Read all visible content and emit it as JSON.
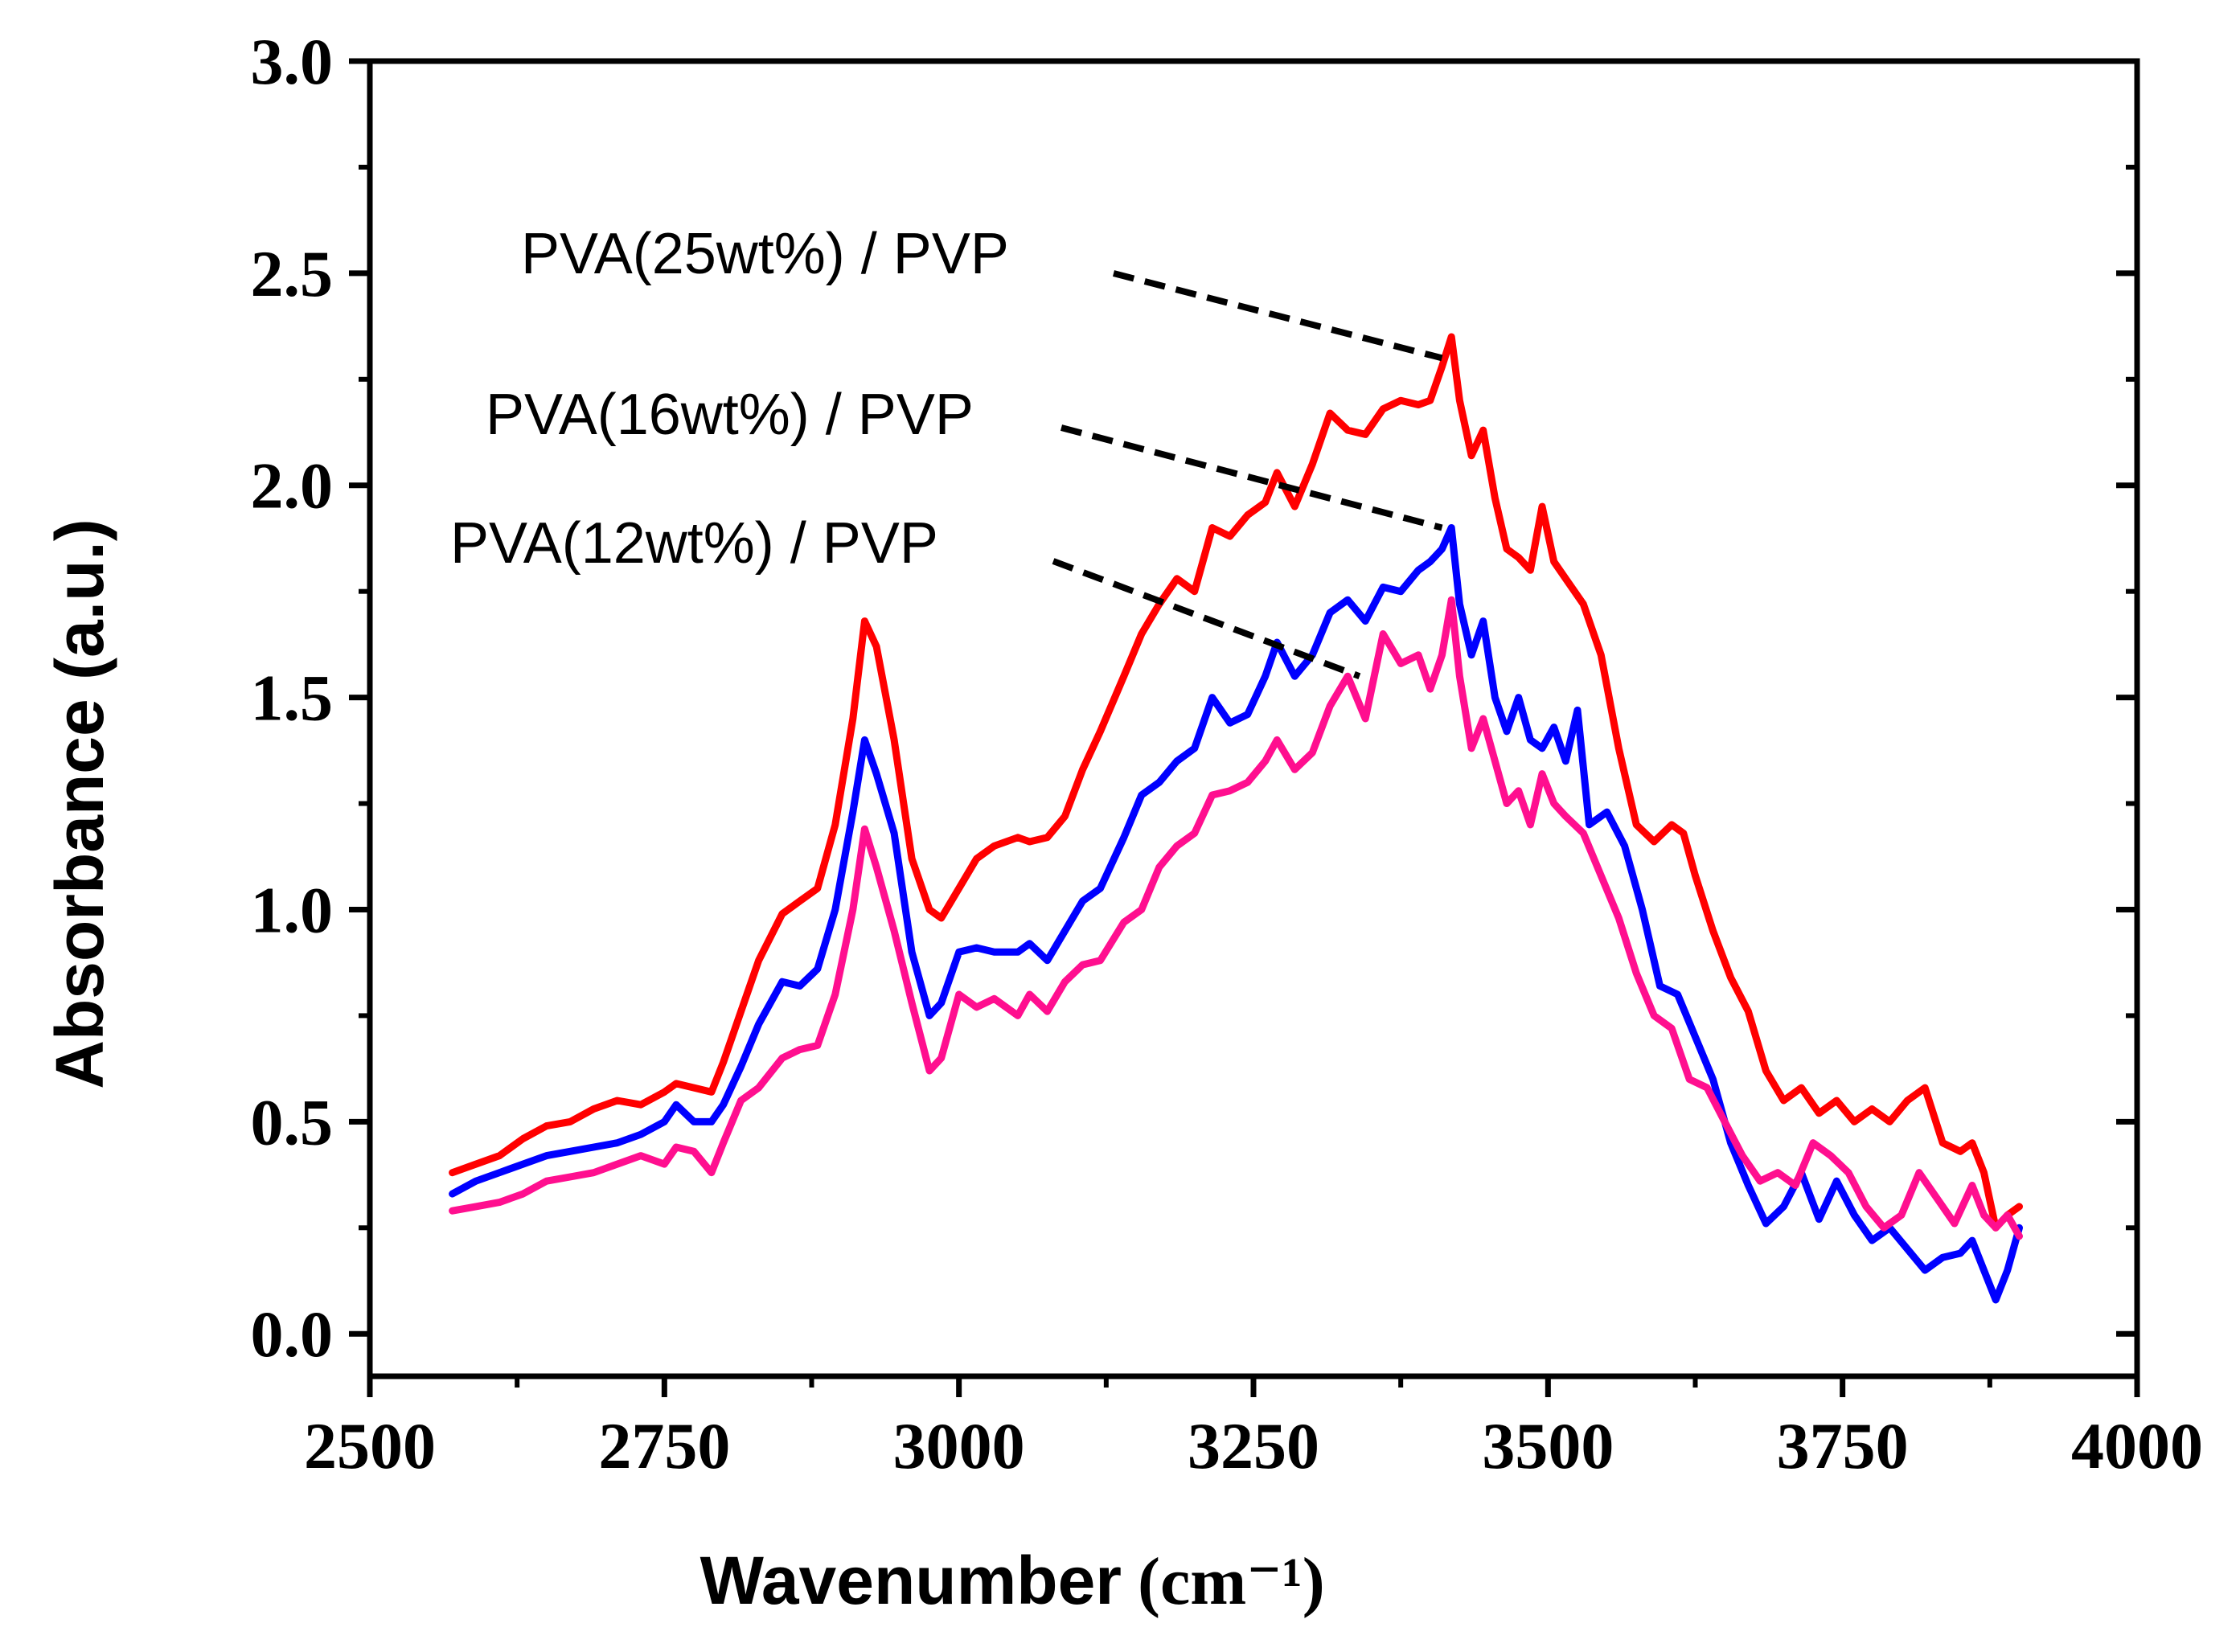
{
  "chart_data": {
    "type": "line",
    "title": "",
    "xlabel": "Wavenumber",
    "xlabel_unit": "(cm⁻¹)",
    "ylabel": "Absorbance (a.u.)",
    "xlim": [
      2500,
      4000
    ],
    "ylim": [
      -0.1,
      3.0
    ],
    "x_ticks": [
      2500,
      2750,
      3000,
      3250,
      3500,
      3750,
      4000
    ],
    "x_tick_labels": [
      "2500",
      "2750",
      "3000",
      "3250",
      "3500",
      "3750",
      "4000"
    ],
    "y_ticks": [
      0.0,
      0.5,
      1.0,
      1.5,
      2.0,
      2.5,
      3.0
    ],
    "y_tick_labels": [
      "0.0",
      "0.5",
      "1.0",
      "1.5",
      "2.0",
      "2.5",
      "3.0"
    ],
    "grid": false,
    "series": [
      {
        "name": "PVA(25wt%) / PVP",
        "color": "#ff0000",
        "x": [
          2570,
          2590,
          2610,
          2630,
          2650,
          2670,
          2690,
          2710,
          2730,
          2750,
          2760,
          2775,
          2790,
          2800,
          2815,
          2830,
          2850,
          2865,
          2880,
          2895,
          2910,
          2920,
          2930,
          2945,
          2960,
          2975,
          2985,
          3000,
          3015,
          3030,
          3050,
          3060,
          3075,
          3090,
          3105,
          3120,
          3140,
          3155,
          3170,
          3185,
          3200,
          3215,
          3230,
          3245,
          3260,
          3270,
          3285,
          3300,
          3315,
          3330,
          3345,
          3360,
          3375,
          3390,
          3400,
          3410,
          3418,
          3425,
          3435,
          3445,
          3455,
          3465,
          3475,
          3485,
          3495,
          3505,
          3515,
          3530,
          3545,
          3560,
          3575,
          3590,
          3605,
          3615,
          3625,
          3640,
          3655,
          3670,
          3685,
          3700,
          3715,
          3730,
          3745,
          3760,
          3775,
          3790,
          3805,
          3820,
          3835,
          3850,
          3860,
          3870,
          3880,
          3890,
          3900
        ],
        "y": [
          0.38,
          0.4,
          0.42,
          0.46,
          0.49,
          0.5,
          0.53,
          0.55,
          0.54,
          0.57,
          0.59,
          0.58,
          0.57,
          0.64,
          0.76,
          0.88,
          0.99,
          1.02,
          1.05,
          1.2,
          1.45,
          1.68,
          1.62,
          1.4,
          1.12,
          1.0,
          0.98,
          1.05,
          1.12,
          1.15,
          1.17,
          1.16,
          1.17,
          1.22,
          1.33,
          1.42,
          1.55,
          1.65,
          1.72,
          1.78,
          1.75,
          1.9,
          1.88,
          1.93,
          1.96,
          2.03,
          1.95,
          2.05,
          2.17,
          2.13,
          2.12,
          2.18,
          2.2,
          2.19,
          2.2,
          2.28,
          2.35,
          2.2,
          2.07,
          2.13,
          1.97,
          1.85,
          1.83,
          1.8,
          1.95,
          1.82,
          1.78,
          1.72,
          1.6,
          1.38,
          1.2,
          1.16,
          1.2,
          1.18,
          1.08,
          0.95,
          0.84,
          0.76,
          0.62,
          0.55,
          0.58,
          0.52,
          0.55,
          0.5,
          0.53,
          0.5,
          0.55,
          0.58,
          0.45,
          0.43,
          0.45,
          0.38,
          0.25,
          0.28,
          0.3
        ]
      },
      {
        "name": "PVA(16wt%) / PVP",
        "color": "#0000ff",
        "x": [
          2570,
          2590,
          2610,
          2630,
          2650,
          2670,
          2690,
          2710,
          2730,
          2750,
          2760,
          2775,
          2790,
          2800,
          2815,
          2830,
          2850,
          2865,
          2880,
          2895,
          2910,
          2920,
          2930,
          2945,
          2960,
          2975,
          2985,
          3000,
          3015,
          3030,
          3050,
          3060,
          3075,
          3090,
          3105,
          3120,
          3140,
          3155,
          3170,
          3185,
          3200,
          3215,
          3230,
          3245,
          3260,
          3270,
          3285,
          3300,
          3315,
          3330,
          3345,
          3360,
          3375,
          3390,
          3400,
          3410,
          3418,
          3425,
          3435,
          3445,
          3455,
          3465,
          3475,
          3485,
          3495,
          3505,
          3515,
          3525,
          3535,
          3550,
          3565,
          3580,
          3595,
          3610,
          3625,
          3640,
          3655,
          3670,
          3685,
          3700,
          3715,
          3730,
          3745,
          3760,
          3775,
          3790,
          3805,
          3820,
          3835,
          3850,
          3860,
          3870,
          3880,
          3890,
          3900
        ],
        "y": [
          0.33,
          0.36,
          0.38,
          0.4,
          0.42,
          0.43,
          0.44,
          0.45,
          0.47,
          0.5,
          0.54,
          0.5,
          0.5,
          0.54,
          0.63,
          0.73,
          0.83,
          0.82,
          0.86,
          1.0,
          1.23,
          1.4,
          1.32,
          1.18,
          0.9,
          0.75,
          0.78,
          0.9,
          0.91,
          0.9,
          0.9,
          0.92,
          0.88,
          0.95,
          1.02,
          1.05,
          1.17,
          1.27,
          1.3,
          1.35,
          1.38,
          1.5,
          1.44,
          1.46,
          1.55,
          1.63,
          1.55,
          1.6,
          1.7,
          1.73,
          1.68,
          1.76,
          1.75,
          1.8,
          1.82,
          1.85,
          1.9,
          1.72,
          1.6,
          1.68,
          1.5,
          1.42,
          1.5,
          1.4,
          1.38,
          1.43,
          1.35,
          1.47,
          1.2,
          1.23,
          1.15,
          1.0,
          0.82,
          0.8,
          0.7,
          0.6,
          0.45,
          0.35,
          0.26,
          0.3,
          0.38,
          0.27,
          0.36,
          0.28,
          0.22,
          0.25,
          0.2,
          0.15,
          0.18,
          0.19,
          0.22,
          0.15,
          0.08,
          0.15,
          0.25
        ]
      },
      {
        "name": "PVA(12wt%) / PVP",
        "color": "#ff0f8f",
        "x": [
          2570,
          2590,
          2610,
          2630,
          2650,
          2670,
          2690,
          2710,
          2730,
          2750,
          2760,
          2775,
          2790,
          2800,
          2815,
          2830,
          2850,
          2865,
          2880,
          2895,
          2910,
          2920,
          2930,
          2945,
          2960,
          2975,
          2985,
          3000,
          3015,
          3030,
          3050,
          3060,
          3075,
          3090,
          3105,
          3120,
          3140,
          3155,
          3170,
          3185,
          3200,
          3215,
          3230,
          3245,
          3260,
          3270,
          3285,
          3300,
          3315,
          3330,
          3345,
          3360,
          3375,
          3390,
          3400,
          3410,
          3418,
          3425,
          3435,
          3445,
          3455,
          3465,
          3475,
          3485,
          3495,
          3505,
          3515,
          3530,
          3545,
          3560,
          3575,
          3590,
          3605,
          3620,
          3635,
          3650,
          3665,
          3680,
          3695,
          3710,
          3725,
          3740,
          3755,
          3770,
          3785,
          3800,
          3815,
          3830,
          3845,
          3860,
          3870,
          3880,
          3890,
          3900
        ],
        "y": [
          0.29,
          0.3,
          0.31,
          0.33,
          0.36,
          0.37,
          0.38,
          0.4,
          0.42,
          0.4,
          0.44,
          0.43,
          0.38,
          0.45,
          0.55,
          0.58,
          0.65,
          0.67,
          0.68,
          0.8,
          1.0,
          1.19,
          1.1,
          0.95,
          0.78,
          0.62,
          0.65,
          0.8,
          0.77,
          0.79,
          0.75,
          0.8,
          0.76,
          0.83,
          0.87,
          0.88,
          0.97,
          1.0,
          1.1,
          1.15,
          1.18,
          1.27,
          1.28,
          1.3,
          1.35,
          1.4,
          1.33,
          1.37,
          1.48,
          1.55,
          1.45,
          1.65,
          1.58,
          1.6,
          1.52,
          1.6,
          1.73,
          1.55,
          1.38,
          1.45,
          1.35,
          1.25,
          1.28,
          1.2,
          1.32,
          1.25,
          1.22,
          1.18,
          1.08,
          0.98,
          0.85,
          0.75,
          0.72,
          0.6,
          0.58,
          0.5,
          0.42,
          0.36,
          0.38,
          0.35,
          0.45,
          0.42,
          0.38,
          0.3,
          0.25,
          0.28,
          0.38,
          0.32,
          0.26,
          0.35,
          0.28,
          0.25,
          0.28,
          0.23
        ]
      }
    ],
    "annotations": [
      {
        "text": "PVA(25wt%) / PVP",
        "arrow_to": [
          3410,
          2.3
        ]
      },
      {
        "text": "PVA(16wt%) / PVP",
        "arrow_to": [
          3410,
          1.9
        ]
      },
      {
        "text": "PVA(12wt%) / PVP",
        "arrow_to": [
          3340,
          1.55
        ]
      }
    ]
  }
}
